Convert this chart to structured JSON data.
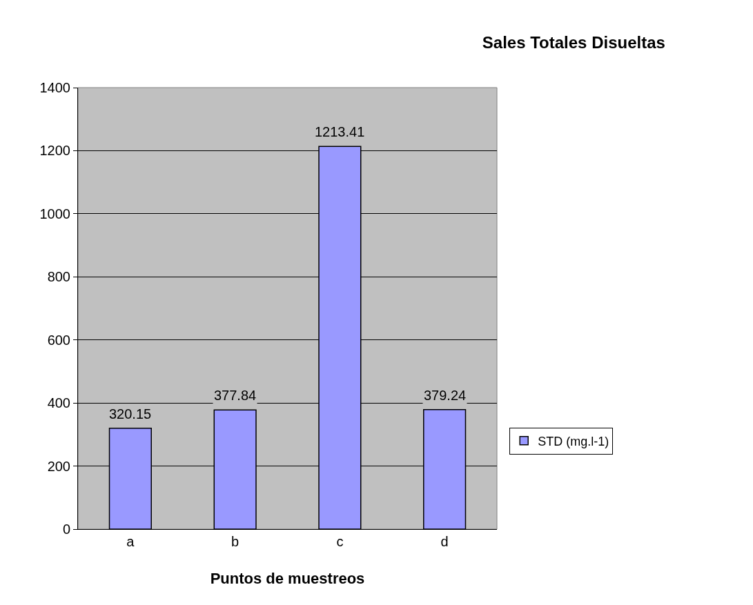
{
  "chart_data": {
    "type": "bar",
    "title": "Sales Totales Disueltas",
    "xlabel": "Puntos de muestreos",
    "categories": [
      "a",
      "b",
      "c",
      "d"
    ],
    "series": [
      {
        "name": "STD (mg.l-1)",
        "color": "#9999ff",
        "values": [
          320.15,
          377.84,
          1213.41,
          379.24
        ]
      }
    ],
    "ylim": [
      0,
      1400
    ],
    "yticks": [
      0,
      200,
      400,
      600,
      800,
      1000,
      1200,
      1400
    ],
    "grid": "y",
    "legend": "right",
    "data_labels": true
  }
}
